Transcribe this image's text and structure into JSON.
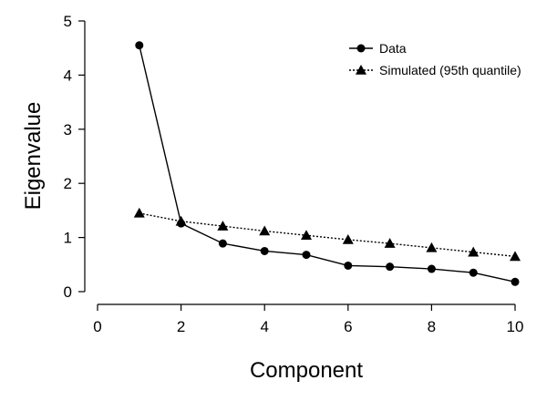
{
  "chart_data": {
    "type": "line",
    "title": "",
    "xlabel": "Component",
    "ylabel": "Eigenvalue",
    "xlim": [
      0,
      10
    ],
    "ylim": [
      0,
      5
    ],
    "xticks": [
      0,
      2,
      4,
      6,
      8,
      10
    ],
    "yticks": [
      0,
      1,
      2,
      3,
      4,
      5
    ],
    "grid": false,
    "legend_position": "top-right",
    "series": [
      {
        "name": "Data",
        "marker": "circle",
        "line_style": "solid",
        "color": "#000000",
        "x": [
          1,
          2,
          3,
          4,
          5,
          6,
          7,
          8,
          9,
          10
        ],
        "values": [
          4.55,
          1.26,
          0.89,
          0.75,
          0.68,
          0.48,
          0.46,
          0.42,
          0.35,
          0.18
        ]
      },
      {
        "name": "Simulated (95th quantile)",
        "marker": "triangle",
        "line_style": "dotted",
        "color": "#000000",
        "x": [
          1,
          2,
          3,
          4,
          5,
          6,
          7,
          8,
          9,
          10
        ],
        "values": [
          1.45,
          1.3,
          1.21,
          1.12,
          1.04,
          0.96,
          0.89,
          0.81,
          0.73,
          0.65
        ]
      }
    ]
  }
}
